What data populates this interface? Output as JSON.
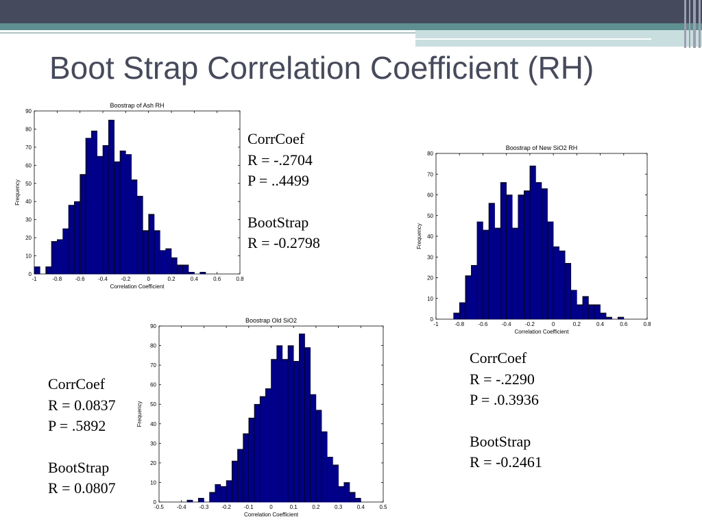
{
  "slide": {
    "title": "Boot Strap Correlation Coefficient (RH)"
  },
  "stats": [
    {
      "corr_label": "CorrCoef",
      "r": "R = -.2704",
      "p": "P = ..4499",
      "boot_label": "BootStrap",
      "boot_r": "R = -0.2798"
    },
    {
      "corr_label": "CorrCoef",
      "r": "R = -.2290",
      "p": "P = .0.3936",
      "boot_label": "BootStrap",
      "boot_r": "R = -0.2461"
    },
    {
      "corr_label": "CorrCoef",
      "r": "R = 0.0837",
      "p": "P = .5892",
      "boot_label": "BootStrap",
      "boot_r": "R = 0.0807"
    }
  ],
  "colors": {
    "bar_fill": "#00008b",
    "bar_stroke": "#000000",
    "title_text": "#454a5c"
  },
  "chart_data": [
    {
      "type": "bar",
      "title": "Boostrap of Ash RH",
      "xlabel": "Correlation Coefficient",
      "ylabel": "Frequency",
      "xlim": [
        -1,
        0.8
      ],
      "ylim": [
        0,
        90
      ],
      "xticks": [
        "-1",
        "-0.8",
        "-0.6",
        "-0.4",
        "-0.2",
        "0",
        "0.2",
        "0.4",
        "0.6",
        "0.8"
      ],
      "yticks": [
        "0",
        "10",
        "20",
        "30",
        "40",
        "50",
        "60",
        "70",
        "80",
        "90"
      ],
      "bin_start": -1.0,
      "bin_width": 0.05,
      "values": [
        4,
        0,
        4,
        18,
        19,
        25,
        38,
        40,
        55,
        75,
        79,
        65,
        71,
        85,
        62,
        68,
        66,
        52,
        43,
        24,
        33,
        24,
        13,
        14,
        9,
        5,
        5,
        1,
        0,
        1,
        0,
        0,
        0,
        0,
        0,
        0
      ]
    },
    {
      "type": "bar",
      "title": "Boostrap of New SiO2 RH",
      "xlabel": "Correlation Coefficient",
      "ylabel": "Frequency",
      "xlim": [
        -1,
        0.8
      ],
      "ylim": [
        0,
        80
      ],
      "xticks": [
        "-1",
        "-0.8",
        "-0.6",
        "-0.4",
        "-0.2",
        "0",
        "0.2",
        "0.4",
        "0.6",
        "0.8"
      ],
      "yticks": [
        "0",
        "10",
        "20",
        "30",
        "40",
        "50",
        "60",
        "70",
        "80"
      ],
      "bin_start": -1.0,
      "bin_width": 0.05,
      "values": [
        0,
        0,
        0,
        3,
        8,
        21,
        26,
        47,
        43,
        56,
        44,
        66,
        60,
        44,
        60,
        62,
        74,
        66,
        63,
        47,
        35,
        33,
        27,
        14,
        7,
        11,
        7,
        7,
        3,
        1,
        0,
        1,
        0,
        0,
        0,
        0
      ]
    },
    {
      "type": "bar",
      "title": "Boostrap Old SiO2",
      "xlabel": "Correlation Coefficient",
      "ylabel": "Frequency",
      "xlim": [
        -0.5,
        0.5
      ],
      "ylim": [
        0,
        90
      ],
      "xticks": [
        "-0.5",
        "-0.4",
        "-0.3",
        "-0.2",
        "-0.1",
        "0",
        "0.1",
        "0.2",
        "0.3",
        "0.4",
        "0.5"
      ],
      "yticks": [
        "0",
        "10",
        "20",
        "30",
        "40",
        "50",
        "60",
        "70",
        "80",
        "90"
      ],
      "bin_start": -0.5,
      "bin_width": 0.025,
      "values": [
        0,
        0,
        0,
        0,
        0,
        1,
        0,
        2,
        0,
        5,
        9,
        8,
        11,
        21,
        27,
        35,
        43,
        50,
        54,
        58,
        73,
        80,
        73,
        80,
        72,
        86,
        79,
        55,
        47,
        36,
        23,
        19,
        8,
        10,
        5,
        2,
        0,
        0,
        0,
        0
      ]
    }
  ]
}
